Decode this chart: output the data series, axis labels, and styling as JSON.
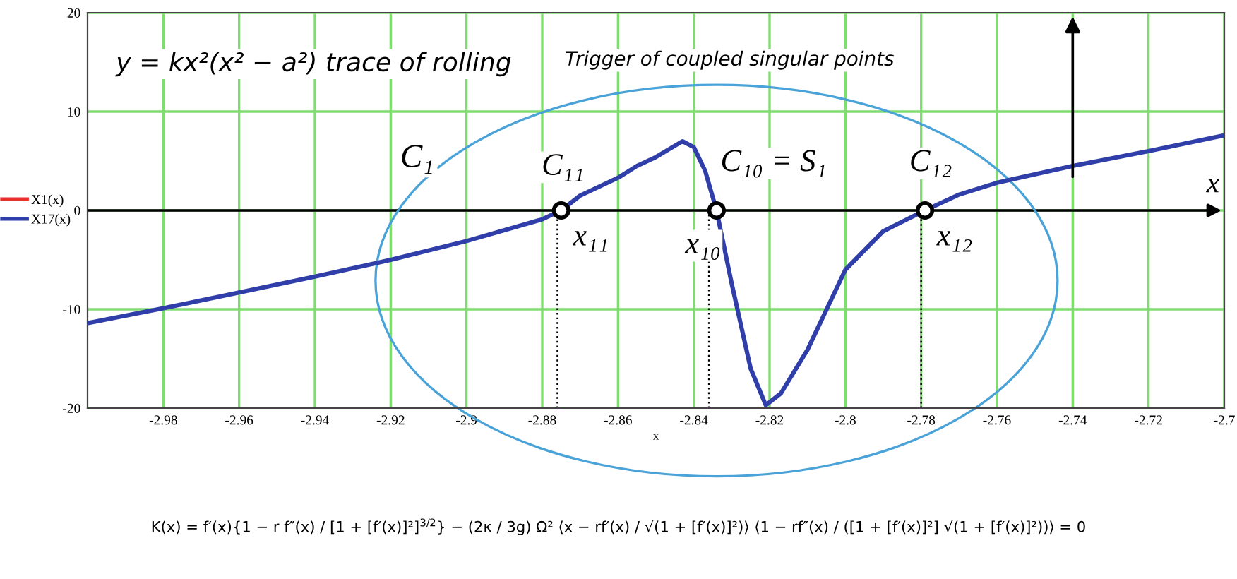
{
  "chart_data": {
    "type": "line",
    "x": [
      -3.0,
      -2.98,
      -2.96,
      -2.94,
      -2.92,
      -2.9,
      -2.88,
      -2.875,
      -2.87,
      -2.86,
      -2.855,
      -2.85,
      -2.843,
      -2.84,
      -2.837,
      -2.834,
      -2.83,
      -2.825,
      -2.821,
      -2.817,
      -2.81,
      -2.8,
      -2.79,
      -2.779,
      -2.77,
      -2.76,
      -2.74,
      -2.72,
      -2.7
    ],
    "series": [
      {
        "name": "X1(x)",
        "color": "#e8302a",
        "values": [
          null,
          null,
          null,
          null,
          null,
          null,
          null,
          null,
          null,
          null,
          null,
          null,
          null,
          null,
          null,
          null,
          null,
          null,
          null,
          null,
          null,
          null,
          null,
          null,
          null,
          null,
          null,
          null,
          null
        ]
      },
      {
        "name": "X17(x)",
        "color": "#2f3ea8",
        "values": [
          -11.4,
          -9.9,
          -8.3,
          -6.7,
          -5.0,
          -3.1,
          -0.9,
          0,
          1.5,
          3.3,
          4.5,
          5.4,
          7.0,
          6.4,
          4.0,
          0,
          -7.4,
          -16.0,
          -19.7,
          -18.5,
          -14.1,
          -6.0,
          -2.1,
          0,
          1.6,
          2.8,
          4.5,
          6.0,
          7.6
        ]
      },
      {
        "type": "scatter",
        "x": [
          -2.875,
          -2.834,
          -2.779
        ],
        "color": "#000000",
        "marker": "circle",
        "values": [
          0,
          0,
          0
        ]
      }
    ],
    "xlabel": "x",
    "xlim": [
      -3.0,
      -2.7
    ],
    "xticks": [
      -2.98,
      -2.96,
      -2.94,
      -2.92,
      -2.9,
      -2.88,
      -2.86,
      -2.84,
      -2.82,
      -2.8,
      -2.78,
      -2.76,
      -2.74,
      -2.72,
      -2.7
    ],
    "ylim": [
      -20,
      20
    ],
    "yticks": [
      -20,
      -10,
      0,
      10,
      20
    ],
    "grid": true,
    "legend": "left",
    "ref_lines": [
      {
        "axis": "y",
        "value": 0,
        "label": "x",
        "color": "#000000",
        "line_style": "solid"
      },
      {
        "axis": "x",
        "value": -2.876,
        "label": null,
        "color": "#000000",
        "line_style": "dotted"
      },
      {
        "axis": "x",
        "value": -2.836,
        "label": null,
        "color": "#000000",
        "line_style": "dotted"
      },
      {
        "axis": "x",
        "value": -2.78,
        "label": null,
        "color": "#000000",
        "line_style": "dotted"
      }
    ],
    "annotations": [
      "y = kx²(x² − a²) trace of rolling",
      "Trigger of coupled singular points",
      "C₁",
      {
        "text": "C₁₁",
        "x": -2.875,
        "y": 0
      },
      {
        "text": "C₁₀ = S₁",
        "x": -2.834,
        "y": 0
      },
      {
        "text": "C₁₂",
        "x": -2.779,
        "y": 0
      },
      {
        "text": "x₁₁",
        "x": -2.875,
        "y": 0
      },
      {
        "text": "x₁₀",
        "x": -2.834,
        "y": 0
      },
      {
        "text": "x₁₂",
        "x": -2.779,
        "y": 0
      },
      "K(x) = f′(x){1 − r f″(x) / [1 + [f′(x)]²]$^{3/2}$} − (2κ / 3g) Ω² ⟨x − rf′(x) / √(1 + [f′(x)]²)⟩ ⟨1 − rf″(x) / ([1 + [f′(x)]²] √(1 + [f′(x)]²))⟩ = 0"
    ]
  }
}
